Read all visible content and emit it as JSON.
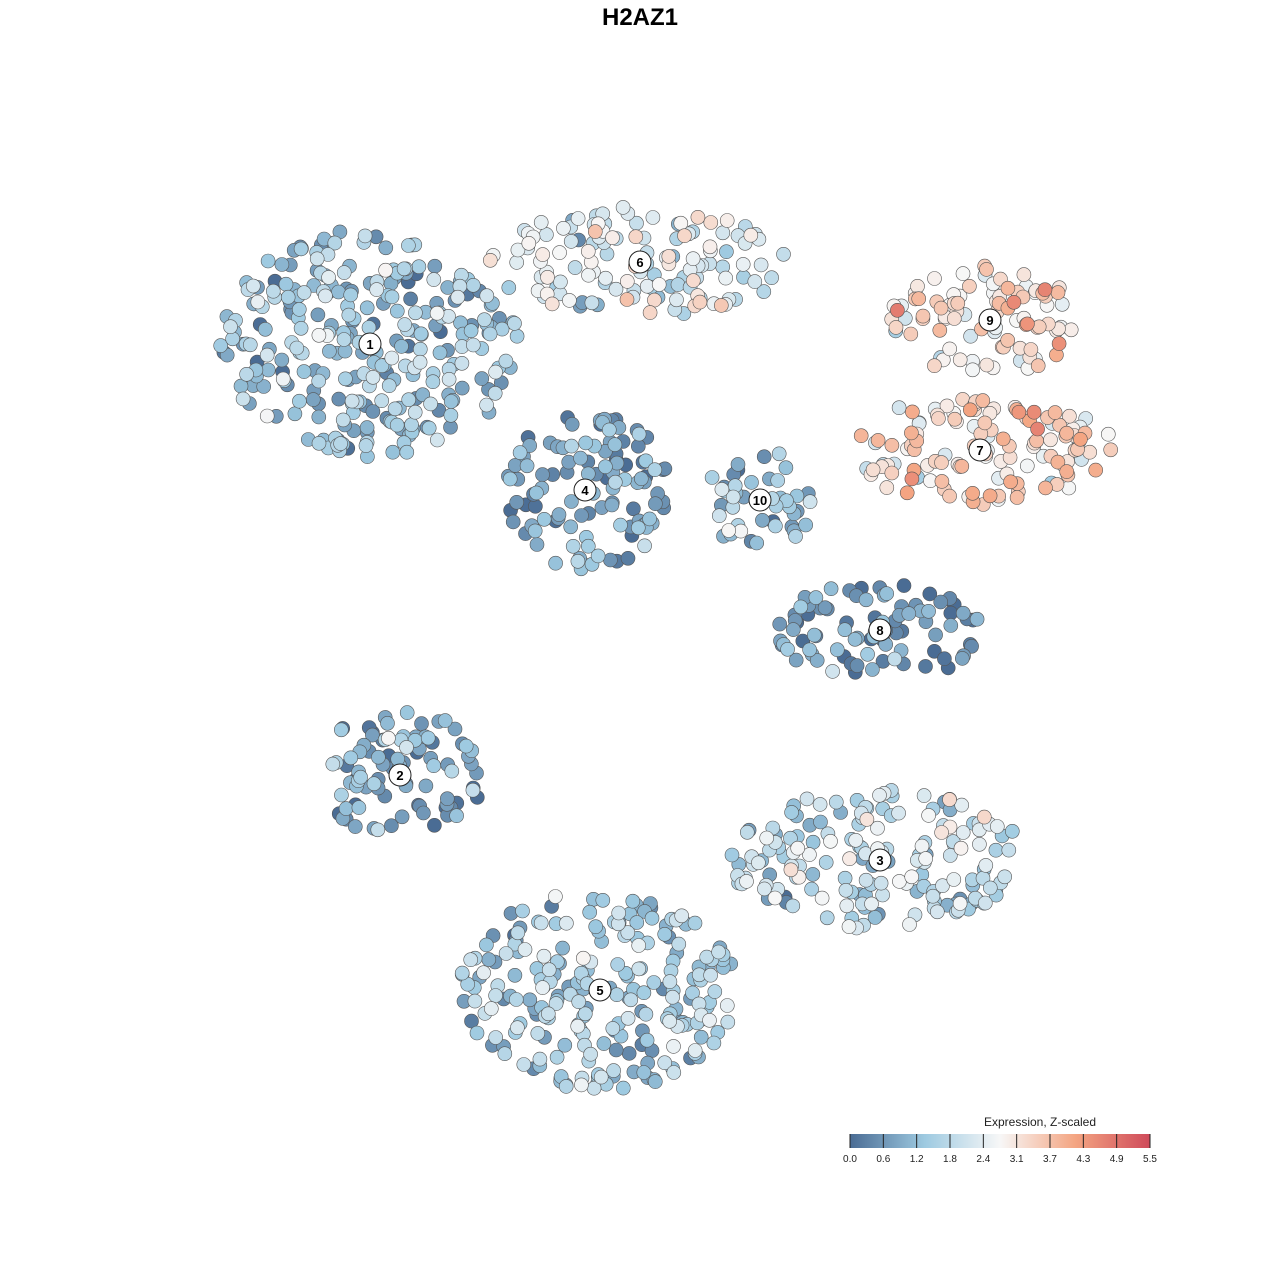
{
  "chart_data": {
    "type": "scatter",
    "title": "H2AZ1",
    "xlabel": "",
    "ylabel": "",
    "grid": false,
    "clusters": [
      {
        "label": "1",
        "center": [
          370,
          344
        ],
        "radius": [
          150,
          115
        ],
        "mean": 1.3
      },
      {
        "label": "2",
        "center": [
          400,
          775
        ],
        "radius": [
          85,
          65
        ],
        "mean": 0.8
      },
      {
        "label": "3",
        "center": [
          880,
          860
        ],
        "radius": [
          150,
          70
        ],
        "mean": 1.8
      },
      {
        "label": "4",
        "center": [
          585,
          490
        ],
        "radius": [
          85,
          80
        ],
        "mean": 0.8
      },
      {
        "label": "5",
        "center": [
          600,
          990
        ],
        "radius": [
          140,
          100
        ],
        "mean": 1.4
      },
      {
        "label": "6",
        "center": [
          640,
          262
        ],
        "radius": [
          150,
          55
        ],
        "mean": 2.3
      },
      {
        "label": "7",
        "center": [
          980,
          450
        ],
        "radius": [
          135,
          55
        ],
        "mean": 3.2
      },
      {
        "label": "8",
        "center": [
          880,
          630
        ],
        "radius": [
          105,
          50
        ],
        "mean": 0.6
      },
      {
        "label": "9",
        "center": [
          990,
          320
        ],
        "radius": [
          100,
          55
        ],
        "mean": 3.0
      },
      {
        "label": "10",
        "center": [
          760,
          500
        ],
        "radius": [
          55,
          50
        ],
        "mean": 1.2
      }
    ],
    "legend": {
      "title": "Expression, Z-scaled",
      "ticks": [
        "0.0",
        "0.6",
        "1.2",
        "1.8",
        "2.4",
        "3.1",
        "3.7",
        "4.3",
        "4.9",
        "5.5"
      ],
      "range": [
        0,
        5.5
      ],
      "placement": "bottom-right"
    },
    "colors": {
      "low": "#4a6c94",
      "mid_low": "#9ecae1",
      "mid": "#f7f7f7",
      "mid_high": "#f4a582",
      "high": "#cf4a5a"
    }
  }
}
